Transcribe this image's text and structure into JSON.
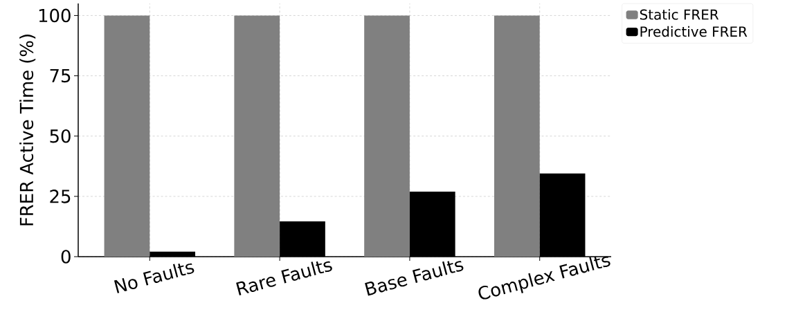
{
  "chart_data": {
    "type": "bar",
    "ylabel": "FRER Active Time (%)",
    "categories": [
      "No Faults",
      "Rare Faults",
      "Base Faults",
      "Complex Faults"
    ],
    "series": [
      {
        "name": "Static FRER",
        "color": "#808080",
        "values": [
          100,
          100,
          100,
          100
        ]
      },
      {
        "name": "Predictive FRER",
        "color": "#000000",
        "values": [
          2.1,
          14.6,
          27.0,
          34.5
        ]
      }
    ],
    "ylim": [
      0,
      105
    ],
    "yticks": [
      0,
      25,
      50,
      75,
      100
    ],
    "grid": true,
    "legend": "right"
  }
}
